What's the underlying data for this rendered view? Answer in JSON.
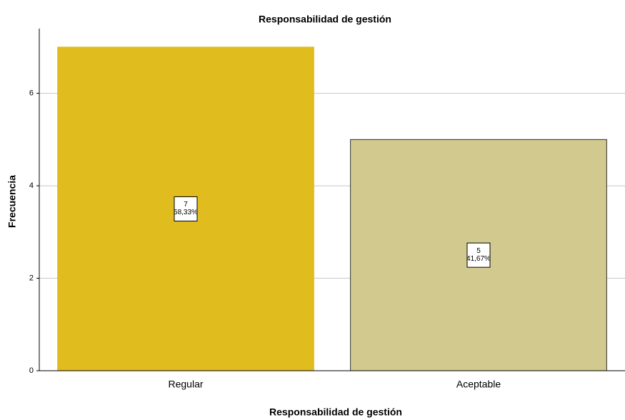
{
  "chart_data": {
    "type": "bar",
    "title": "Responsabilidad de gestión",
    "x_label": "Responsabilidad de gestión",
    "y_label": "Frecuencia",
    "categories": [
      "Regular",
      "Aceptable"
    ],
    "values": [
      7,
      5
    ],
    "percents": [
      58.33,
      41.67
    ],
    "percent_labels": [
      "58,33%",
      "41,67%"
    ],
    "colors": [
      "#e0bc1f",
      "#d1c98e"
    ],
    "ylim": [
      0,
      7.4
    ],
    "yticks": [
      0,
      2,
      4,
      6
    ],
    "grid": true
  }
}
